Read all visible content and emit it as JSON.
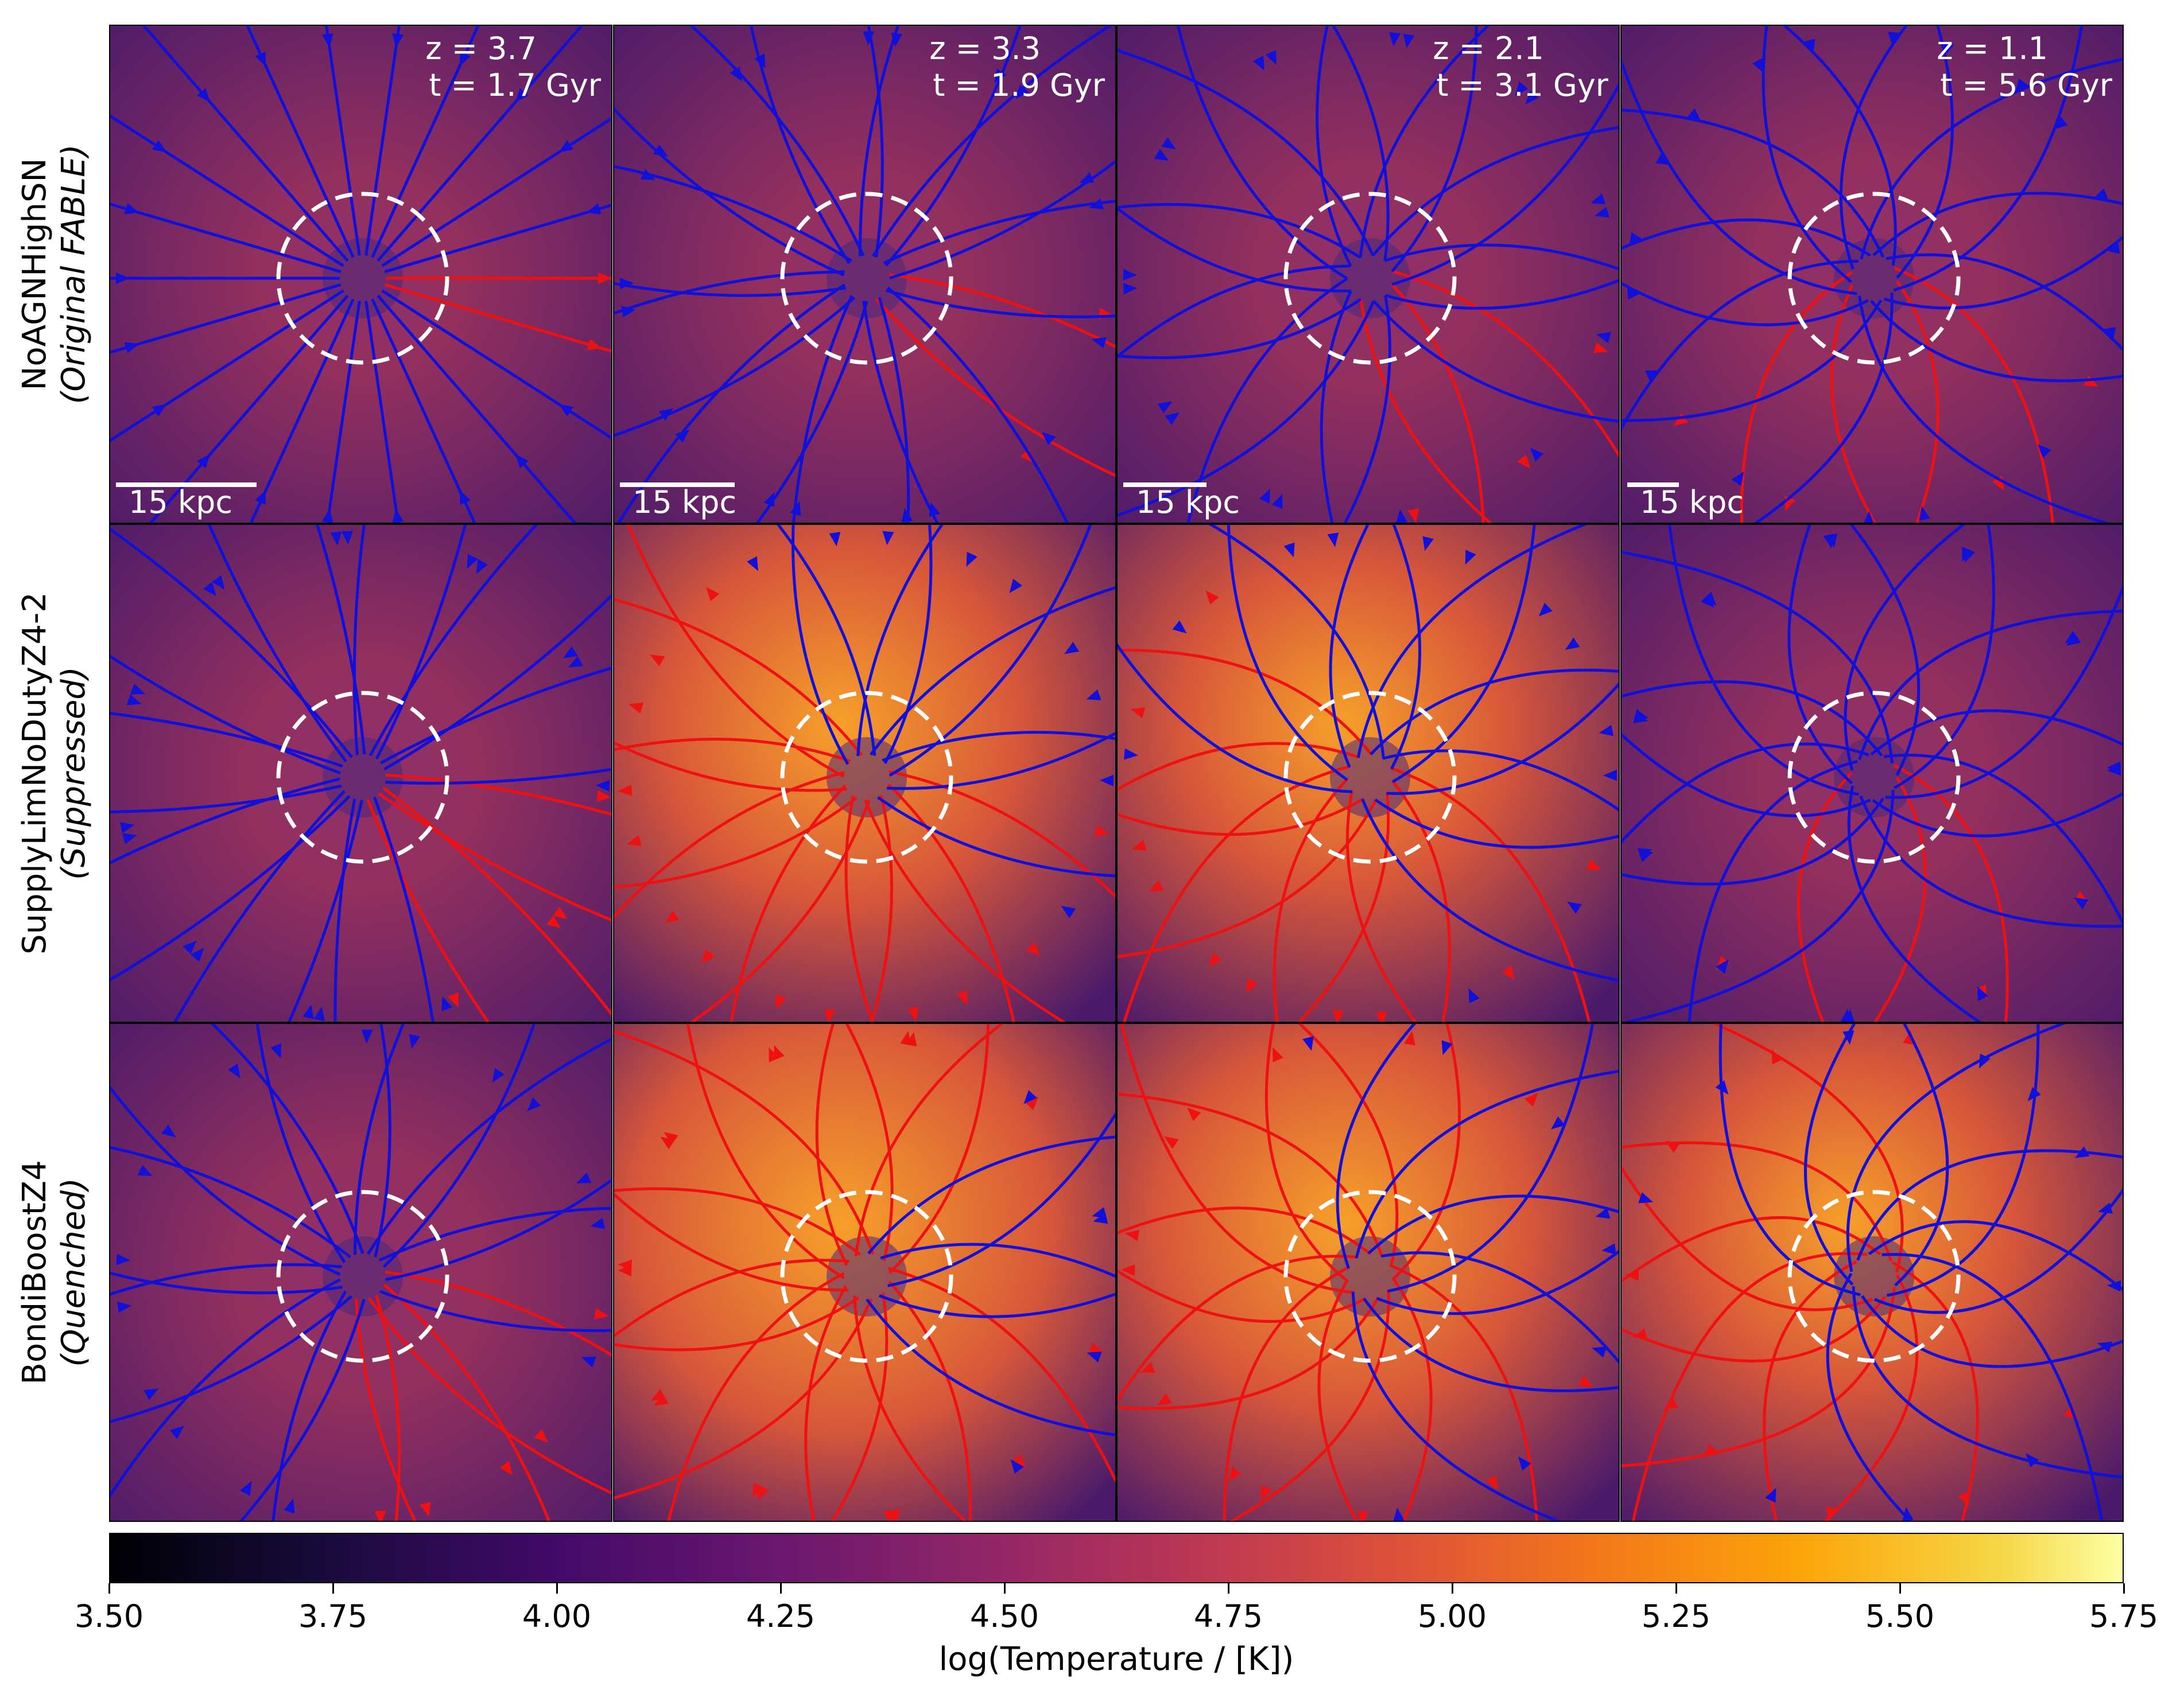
{
  "columns": [
    {
      "z": "z = 3.7",
      "t": "t = 1.7 Gyr"
    },
    {
      "z": "z = 3.3",
      "t": "t = 1.9 Gyr"
    },
    {
      "z": "z = 2.1",
      "t": "t = 3.1 Gyr"
    },
    {
      "z": "z = 1.1",
      "t": "t = 5.6 Gyr"
    }
  ],
  "rows": [
    {
      "name": "NoAGNHighSN",
      "sub": "(Original FABLE)"
    },
    {
      "name": "SupplyLimNoDutyZ4-2",
      "sub": "(Suppressed)"
    },
    {
      "name": "BondiBoostZ4",
      "sub": "(Quenched)"
    }
  ],
  "scalebar_label": "15 kpc",
  "colorbar": {
    "label": "log(Temperature / [K])",
    "ticks": [
      "3.50",
      "3.75",
      "4.00",
      "4.25",
      "4.50",
      "4.75",
      "5.00",
      "5.25",
      "5.50",
      "5.75"
    ],
    "range": [
      3.5,
      5.75
    ],
    "colormap": "inferno"
  },
  "colors": {
    "inflow": "#1010d8",
    "outflow": "#ee1111",
    "circle": "#ffffff"
  },
  "panel_heat": [
    [
      0.05,
      0.05,
      0.12,
      0.15
    ],
    [
      0.15,
      0.55,
      0.45,
      0.1
    ],
    [
      0.2,
      0.75,
      0.6,
      0.45
    ]
  ]
}
